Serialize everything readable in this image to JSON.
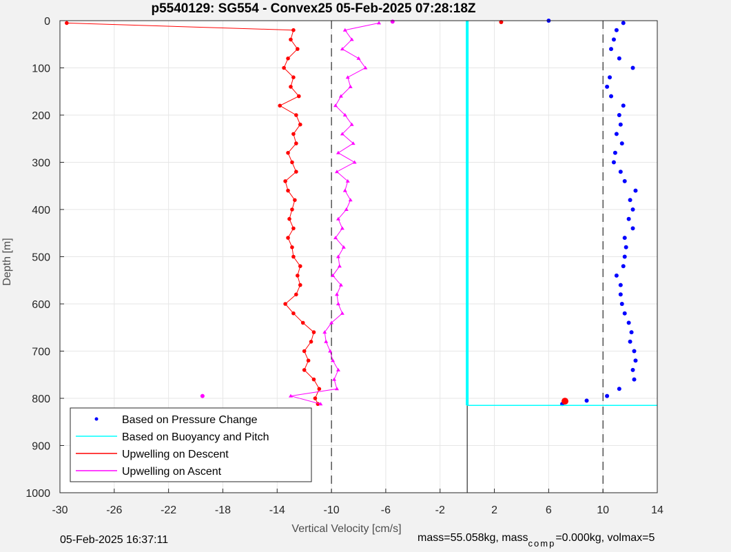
{
  "chart_data": {
    "type": "scatter",
    "title": "p5540129: SG554 - Convex25 05-Feb-2025 07:28:18Z",
    "xlabel": "Vertical Velocity [cm/s]",
    "ylabel": "Depth [m]",
    "xlim": [
      -30,
      14
    ],
    "ylim": [
      0,
      1000
    ],
    "y_reversed": true,
    "grid": true,
    "legend_position": "bottom-left",
    "x_ticks": [
      "-30",
      "-26",
      "-22",
      "-18",
      "-14",
      "-10",
      "-6",
      "-2",
      "2",
      "6",
      "10",
      "14"
    ],
    "y_ticks": [
      "0",
      "100",
      "200",
      "300",
      "400",
      "500",
      "600",
      "700",
      "800",
      "900",
      "1000"
    ],
    "reference_lines_x": [
      -10,
      10
    ],
    "series": [
      {
        "name": "Based on Pressure Change",
        "color": "#0000ff",
        "style": "points",
        "depth": [
          5,
          20,
          40,
          60,
          80,
          100,
          120,
          140,
          160,
          180,
          200,
          220,
          240,
          260,
          280,
          300,
          320,
          340,
          360,
          380,
          400,
          420,
          440,
          460,
          480,
          500,
          520,
          540,
          560,
          580,
          600,
          620,
          640,
          660,
          680,
          700,
          720,
          740,
          760,
          780,
          795,
          805,
          812
        ],
        "velocity": [
          11.5,
          11.0,
          10.8,
          10.6,
          11.2,
          12.2,
          10.5,
          10.3,
          10.6,
          11.5,
          11.2,
          11.3,
          11.0,
          11.4,
          10.9,
          10.8,
          11.3,
          11.6,
          12.4,
          12.0,
          12.2,
          11.9,
          12.2,
          11.6,
          11.7,
          11.6,
          11.5,
          11.0,
          11.3,
          11.3,
          11.4,
          11.6,
          11.9,
          12.1,
          12.0,
          12.3,
          12.4,
          12.2,
          12.3,
          11.2,
          10.3,
          8.8,
          7.0
        ]
      },
      {
        "name": "Based on Buoyancy and Pitch",
        "color": "#00ffff",
        "style": "line",
        "depth": [
          0,
          100,
          200,
          300,
          400,
          500,
          600,
          700,
          800,
          815
        ],
        "velocity": [
          0,
          0,
          0,
          0,
          0,
          0,
          0,
          0,
          0,
          0
        ]
      },
      {
        "name": "Upwelling on Descent",
        "color": "#ff0000",
        "style": "line-markers",
        "depth": [
          5,
          20,
          40,
          60,
          80,
          100,
          120,
          140,
          160,
          180,
          200,
          220,
          240,
          260,
          280,
          300,
          320,
          340,
          360,
          380,
          400,
          420,
          440,
          460,
          480,
          500,
          520,
          540,
          560,
          580,
          600,
          620,
          640,
          660,
          680,
          700,
          720,
          740,
          760,
          780,
          800,
          812
        ],
        "velocity": [
          -29.5,
          -12.8,
          -13.0,
          -12.5,
          -13.2,
          -13.5,
          -12.8,
          -13.0,
          -12.4,
          -13.8,
          -12.6,
          -12.3,
          -12.8,
          -12.6,
          -13.2,
          -12.9,
          -12.6,
          -13.4,
          -13.2,
          -12.7,
          -12.9,
          -13.1,
          -12.8,
          -13.2,
          -12.9,
          -12.8,
          -12.3,
          -12.5,
          -12.3,
          -12.6,
          -13.4,
          -12.8,
          -12.1,
          -11.3,
          -11.5,
          -12.0,
          -11.7,
          -12.0,
          -11.3,
          -10.9,
          -11.2,
          -11.0
        ]
      },
      {
        "name": "Upwelling on Ascent",
        "color": "#ff00ff",
        "style": "line-markers",
        "depth": [
          5,
          20,
          40,
          60,
          80,
          100,
          120,
          140,
          160,
          180,
          200,
          220,
          240,
          260,
          280,
          300,
          320,
          340,
          360,
          380,
          400,
          420,
          440,
          460,
          480,
          500,
          520,
          540,
          560,
          580,
          600,
          620,
          640,
          660,
          680,
          700,
          720,
          740,
          760,
          780,
          795,
          812
        ],
        "velocity": [
          -6.5,
          -9.0,
          -8.5,
          -9.2,
          -8.0,
          -7.5,
          -8.8,
          -8.6,
          -9.3,
          -9.7,
          -9.0,
          -8.5,
          -9.2,
          -8.4,
          -9.5,
          -8.3,
          -9.6,
          -8.8,
          -9.0,
          -8.6,
          -8.9,
          -9.5,
          -9.2,
          -9.7,
          -9.1,
          -9.5,
          -9.4,
          -9.9,
          -9.3,
          -9.6,
          -9.5,
          -9.2,
          -10.0,
          -10.5,
          -10.4,
          -10.1,
          -9.9,
          -9.5,
          -9.8,
          -9.6,
          -13.0,
          -10.8
        ]
      }
    ],
    "surface_spikes": [
      {
        "depth": 2,
        "velocity": -5.5,
        "series": "Upwelling on Ascent"
      },
      {
        "depth": 3,
        "velocity": 2.5,
        "series": "Upwelling on Descent"
      },
      {
        "depth": 0,
        "velocity": 6.0,
        "series": "Based on Pressure Change"
      }
    ],
    "bottom_spikes": [
      {
        "depth": 795,
        "velocity": -19.5,
        "series": "Upwelling on Ascent"
      },
      {
        "depth": 806,
        "velocity": 7.2,
        "series": "Upwelling on Descent"
      },
      {
        "depth": 815,
        "velocity": 14.0,
        "series": "Based on Buoyancy and Pitch"
      }
    ]
  },
  "legend": {
    "items": [
      {
        "label": "Based on Pressure Change",
        "color": "#0000ff",
        "kind": "dot"
      },
      {
        "label": "Based on Buoyancy and Pitch",
        "color": "#00ffff",
        "kind": "line"
      },
      {
        "label": "Upwelling on Descent",
        "color": "#ff0000",
        "kind": "line"
      },
      {
        "label": "Upwelling on Ascent",
        "color": "#ff00ff",
        "kind": "line"
      }
    ]
  },
  "footer": {
    "timestamp": "05-Feb-2025 16:37:11",
    "mass_text": "mass=55.058kg, mass",
    "comp_sub": "comp",
    "comp_text": "=0.000kg, volmax=5"
  },
  "colors": {
    "background": "#f2f2f2",
    "plot_area": "#ffffff",
    "grid": "#e6e6e6"
  }
}
